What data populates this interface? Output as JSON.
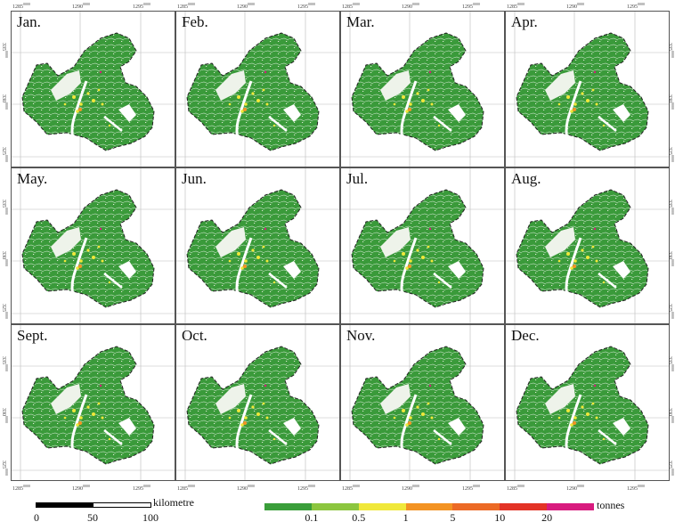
{
  "panels": [
    {
      "month": "Jan."
    },
    {
      "month": "Feb."
    },
    {
      "month": "Mar."
    },
    {
      "month": "Apr."
    },
    {
      "month": "May."
    },
    {
      "month": "Jun."
    },
    {
      "month": "Jul."
    },
    {
      "month": "Aug."
    },
    {
      "month": "Sept."
    },
    {
      "month": "Oct."
    },
    {
      "month": "Nov."
    },
    {
      "month": "Dec."
    }
  ],
  "axes": {
    "x_ticks": [
      {
        "value": "1285",
        "sup": "0000"
      },
      {
        "value": "1290",
        "sup": "0000"
      },
      {
        "value": "1295",
        "sup": "0000"
      }
    ],
    "y_ticks": [
      {
        "value": "335",
        "sup": "0000"
      },
      {
        "value": "330",
        "sup": "0000"
      },
      {
        "value": "325",
        "sup": "0000"
      }
    ]
  },
  "scale_bar": {
    "unit": "kilometre",
    "labels": [
      "0",
      "50",
      "100"
    ]
  },
  "legend": {
    "unit": "tonnes",
    "colors": [
      "#3a9e3a",
      "#8cc63f",
      "#f0e83a",
      "#f39323",
      "#ec6a25",
      "#e33326",
      "#d81b7e"
    ],
    "labels": [
      "0.1",
      "0.5",
      "1",
      "5",
      "10",
      "20"
    ]
  }
}
